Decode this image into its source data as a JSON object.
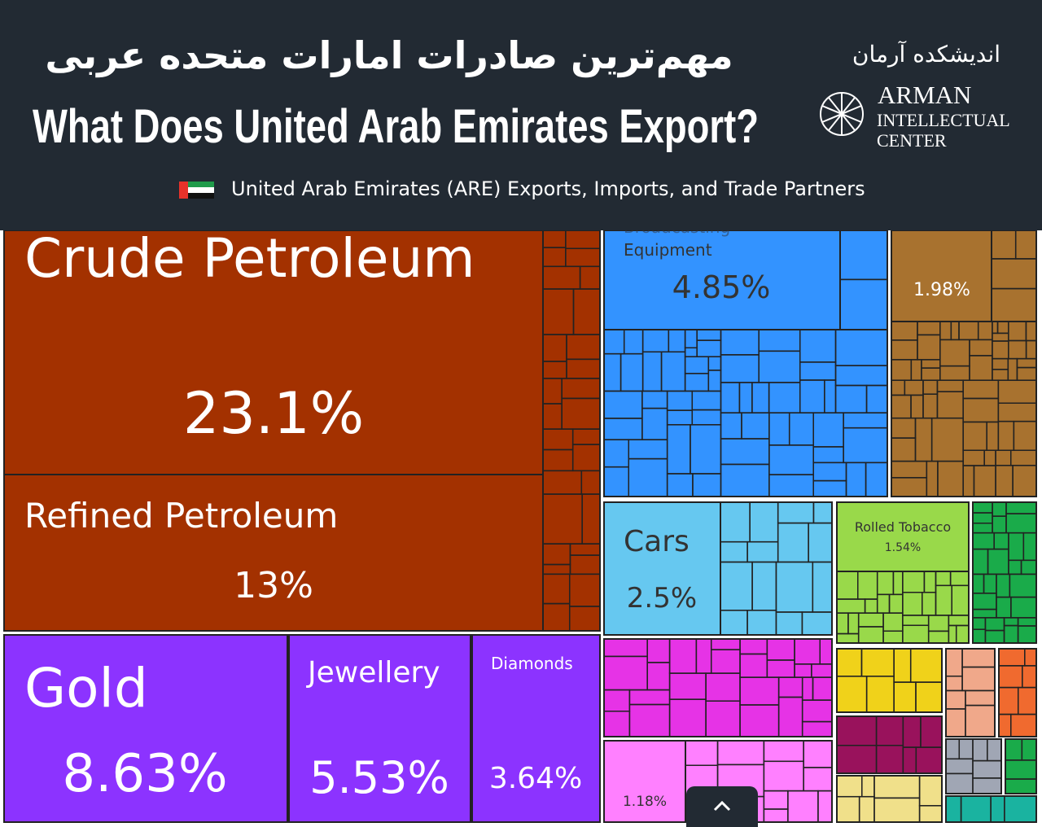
{
  "header": {
    "title_fa": "مهم‌ترین صادرات امارات متحده عربی",
    "title_en": "What Does United Arab Emirates Export?",
    "logo_fa": "اندیشکده آرمان",
    "logo_en": [
      "ARMAN",
      "INTELLECTUAL",
      "CENTER"
    ],
    "subtitle": "United Arab Emirates (ARE) Exports, Imports, and Trade Partners"
  },
  "chart_data": {
    "type": "treemap",
    "categories": [
      "Crude Petroleum",
      "Refined Petroleum",
      "Gold",
      "Jewellery",
      "Diamonds",
      "Broadcasting Equipment",
      null,
      "Cars",
      "Rolled Tobacco",
      null
    ],
    "values": [
      23.1,
      13,
      8.63,
      5.53,
      3.64,
      4.85,
      1.98,
      2.5,
      1.54,
      1.18
    ],
    "value_labels": [
      "23.1%",
      "13%",
      "8.63%",
      "5.53%",
      "3.64%",
      "4.85%",
      "1.98%",
      "2.5%",
      "1.54%",
      "1.18%"
    ],
    "colors": [
      "#a33100",
      "#a33100",
      "#8c33ff",
      "#8c33ff",
      "#8c33ff",
      "#3393ff",
      "#a8722f",
      "#66c8f0",
      "#99d94a",
      "#ff80ff"
    ]
  }
}
